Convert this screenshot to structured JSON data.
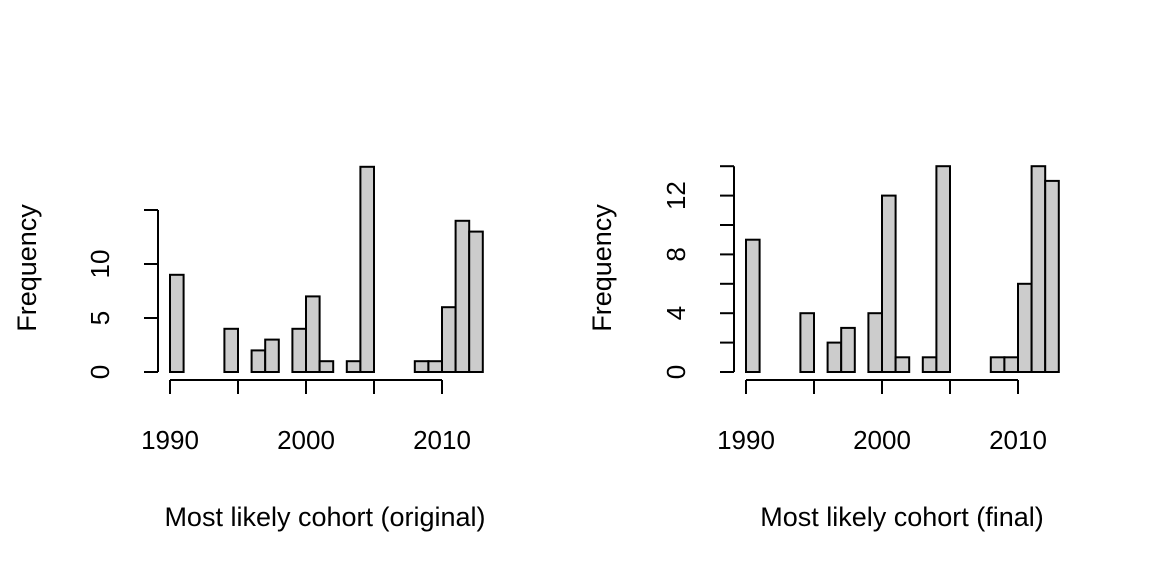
{
  "chart_data": [
    {
      "type": "bar",
      "xlabel": "Most likely cohort (original)",
      "ylabel": "Frequency",
      "xlim": [
        1990,
        2013
      ],
      "ylim": [
        0,
        17
      ],
      "x_ticks": [
        1990,
        1995,
        2000,
        2005,
        2010
      ],
      "x_tick_labels": [
        "1990",
        "2000",
        "2010"
      ],
      "y_ticks": [
        0,
        5,
        10,
        15
      ],
      "y_tick_labels": [
        "0",
        "5",
        "10"
      ],
      "bins": [
        {
          "x": 1990,
          "value": 9
        },
        {
          "x": 1991,
          "value": 0
        },
        {
          "x": 1992,
          "value": 0
        },
        {
          "x": 1993,
          "value": 0
        },
        {
          "x": 1994,
          "value": 4
        },
        {
          "x": 1995,
          "value": 0
        },
        {
          "x": 1996,
          "value": 2
        },
        {
          "x": 1997,
          "value": 3
        },
        {
          "x": 1998,
          "value": 0
        },
        {
          "x": 1999,
          "value": 4
        },
        {
          "x": 2000,
          "value": 7
        },
        {
          "x": 2001,
          "value": 1
        },
        {
          "x": 2002,
          "value": 0
        },
        {
          "x": 2003,
          "value": 1
        },
        {
          "x": 2004,
          "value": 19
        },
        {
          "x": 2005,
          "value": 0
        },
        {
          "x": 2006,
          "value": 0
        },
        {
          "x": 2007,
          "value": 0
        },
        {
          "x": 2008,
          "value": 1
        },
        {
          "x": 2009,
          "value": 1
        },
        {
          "x": 2010,
          "value": 6
        },
        {
          "x": 2011,
          "value": 14
        },
        {
          "x": 2012,
          "value": 13
        }
      ]
    },
    {
      "type": "bar",
      "xlabel": "Most likely cohort (final)",
      "ylabel": "Frequency",
      "xlim": [
        1990,
        2013
      ],
      "ylim": [
        0,
        14
      ],
      "x_ticks": [
        1990,
        1995,
        2000,
        2005,
        2010
      ],
      "x_tick_labels": [
        "1990",
        "2000",
        "2010"
      ],
      "y_ticks": [
        0,
        2,
        4,
        6,
        8,
        10,
        12,
        14
      ],
      "y_tick_labels": [
        "0",
        "4",
        "8",
        "12"
      ],
      "bins": [
        {
          "x": 1990,
          "value": 9
        },
        {
          "x": 1991,
          "value": 0
        },
        {
          "x": 1992,
          "value": 0
        },
        {
          "x": 1993,
          "value": 0
        },
        {
          "x": 1994,
          "value": 4
        },
        {
          "x": 1995,
          "value": 0
        },
        {
          "x": 1996,
          "value": 2
        },
        {
          "x": 1997,
          "value": 3
        },
        {
          "x": 1998,
          "value": 0
        },
        {
          "x": 1999,
          "value": 4
        },
        {
          "x": 2000,
          "value": 12
        },
        {
          "x": 2001,
          "value": 1
        },
        {
          "x": 2002,
          "value": 0
        },
        {
          "x": 2003,
          "value": 1
        },
        {
          "x": 2004,
          "value": 14
        },
        {
          "x": 2005,
          "value": 0
        },
        {
          "x": 2006,
          "value": 0
        },
        {
          "x": 2007,
          "value": 0
        },
        {
          "x": 2008,
          "value": 1
        },
        {
          "x": 2009,
          "value": 1
        },
        {
          "x": 2010,
          "value": 6
        },
        {
          "x": 2011,
          "value": 14
        },
        {
          "x": 2012,
          "value": 13
        }
      ]
    }
  ]
}
